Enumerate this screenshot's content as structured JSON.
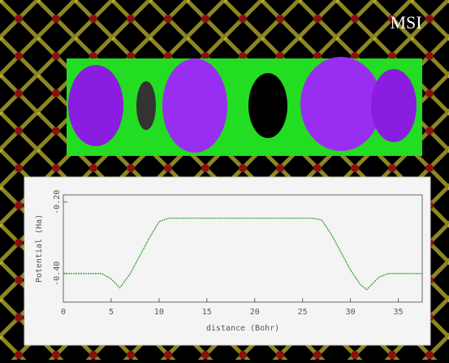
{
  "chart_data": {
    "type": "line",
    "annotation": "MSI",
    "x_label": "distance (Bohr)",
    "y_label": "Potential (Ha)",
    "xlim": [
      0,
      37.5
    ],
    "ylim": [
      -0.48,
      -0.18
    ],
    "xticks": [
      0,
      5,
      10,
      15,
      20,
      25,
      30,
      35
    ],
    "yticks": [
      {
        "value": -0.2,
        "label": "-0.20"
      },
      {
        "value": -0.4,
        "label": "-0.40"
      }
    ],
    "series": [
      {
        "color": "#2e9e2e",
        "x": [
          0,
          4,
          5,
          5.9,
          7,
          8,
          9,
          10,
          11,
          15,
          20,
          26,
          27,
          28,
          29,
          30,
          31,
          31.7,
          33,
          34,
          37.5
        ],
        "values": [
          -0.4,
          -0.4,
          -0.415,
          -0.44,
          -0.4,
          -0.35,
          -0.3,
          -0.255,
          -0.245,
          -0.245,
          -0.245,
          -0.245,
          -0.25,
          -0.29,
          -0.34,
          -0.39,
          -0.43,
          -0.445,
          -0.41,
          -0.4,
          -0.4
        ]
      }
    ]
  }
}
